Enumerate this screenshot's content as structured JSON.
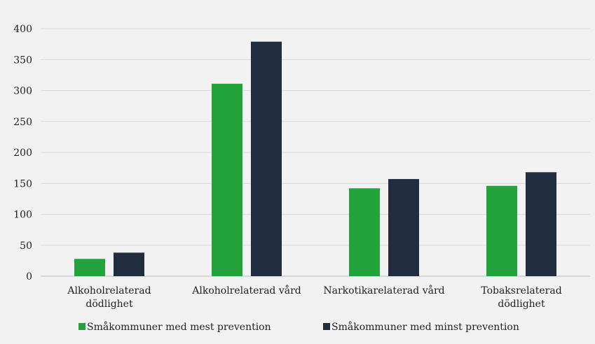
{
  "chart_data": {
    "type": "bar",
    "categories": [
      [
        "Alkoholrelaterad",
        "dödlighet"
      ],
      [
        "Alkoholrelaterad vård"
      ],
      [
        "Narkotikarelaterad vård"
      ],
      [
        "Tobaksrelaterad",
        "dödlighet"
      ]
    ],
    "series": [
      {
        "name": "Småkommuner med mest prevention",
        "color": "#22a33c",
        "values": [
          28,
          311,
          142,
          146
        ]
      },
      {
        "name": "Småkommuner med minst prevention",
        "color": "#222d3f",
        "values": [
          38,
          379,
          157,
          168
        ]
      }
    ],
    "ylim": [
      0,
      400
    ],
    "yticks": [
      0,
      50,
      100,
      150,
      200,
      250,
      300,
      350,
      400
    ],
    "grid": true,
    "legend": "bottom"
  }
}
